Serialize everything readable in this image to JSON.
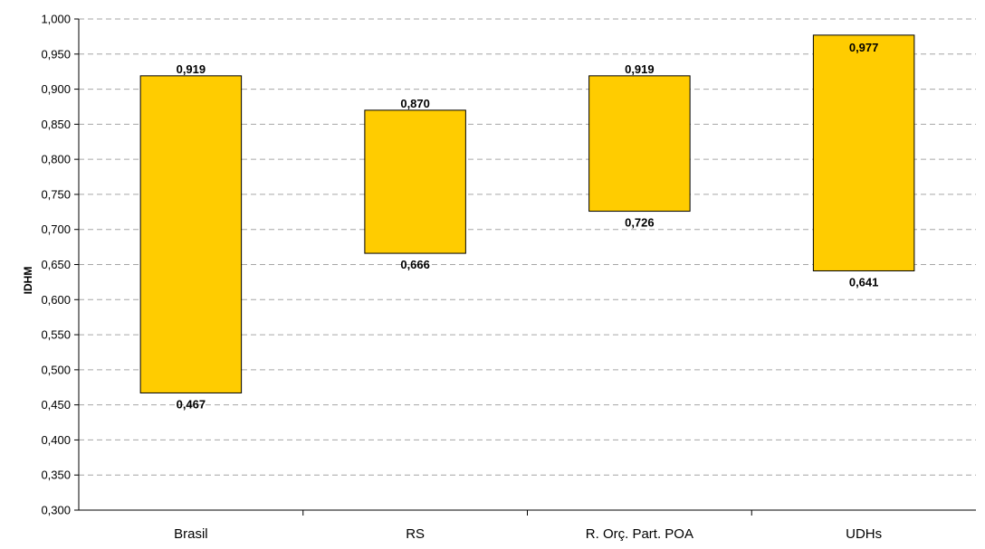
{
  "chart_data": {
    "type": "bar",
    "subtype": "floating-range",
    "title": "",
    "xlabel": "",
    "ylabel": "IDHM",
    "ylim": [
      0.3,
      1.0
    ],
    "ytick_step": 0.05,
    "yticks": [
      "0,300",
      "0,350",
      "0,400",
      "0,450",
      "0,500",
      "0,550",
      "0,600",
      "0,650",
      "0,700",
      "0,750",
      "0,800",
      "0,850",
      "0,900",
      "0,950",
      "1,000"
    ],
    "grid": true,
    "legend": "none",
    "bar_color": "#FFCC00",
    "categories": [
      "Brasil",
      "RS",
      "R. Orç. Part. POA",
      "UDHs"
    ],
    "min": [
      0.467,
      0.666,
      0.726,
      0.641
    ],
    "max": [
      0.919,
      0.87,
      0.919,
      0.977
    ],
    "min_labels": [
      "0,467",
      "0,666",
      "0,726",
      "0,641"
    ],
    "max_labels": [
      "0,919",
      "0,870",
      "0,919",
      "0,977"
    ]
  }
}
